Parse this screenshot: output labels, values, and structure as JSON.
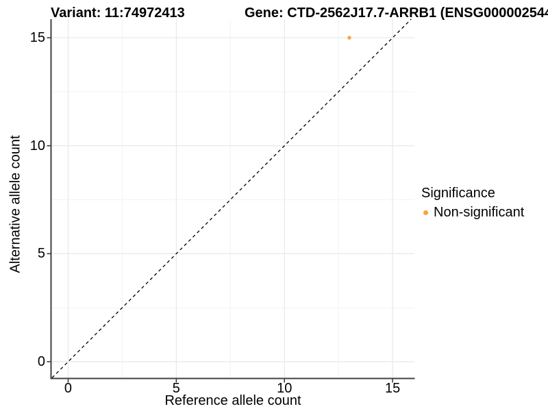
{
  "header": {
    "variant_title": "Variant: 11:74972413",
    "gene_title": "Gene: CTD-2562J17.7-ARRB1 (ENSG000002544"
  },
  "chart_data": {
    "type": "scatter",
    "xlabel": "Reference allele count",
    "ylabel": "Alternative allele count",
    "xlim": [
      -0.76,
      16.01
    ],
    "ylim": [
      -0.745,
      15.86
    ],
    "xticks": [
      0,
      5,
      10,
      15
    ],
    "yticks": [
      0,
      5,
      10,
      15
    ],
    "xminor": [
      2.5,
      7.5,
      12.5
    ],
    "yminor": [
      2.5,
      7.5,
      12.5
    ],
    "grid": "major+minor, light gray on white",
    "reference_line": {
      "type": "identity y=x",
      "style": "dashed",
      "color": "#000000"
    },
    "series": [
      {
        "name": "Non-significant",
        "color": "#F9A242",
        "points": [
          {
            "x": 13,
            "y": 15
          }
        ]
      }
    ],
    "legend": {
      "title": "Significance",
      "position": "right",
      "entries": [
        {
          "label": "Non-significant",
          "color": "#F9A242"
        }
      ]
    }
  },
  "colors": {
    "background": "#ffffff",
    "axis": "#404040",
    "tick": "#333333",
    "grid_major": "#e8e8e8",
    "grid_minor": "#f3f3f3",
    "text": "#000000"
  }
}
